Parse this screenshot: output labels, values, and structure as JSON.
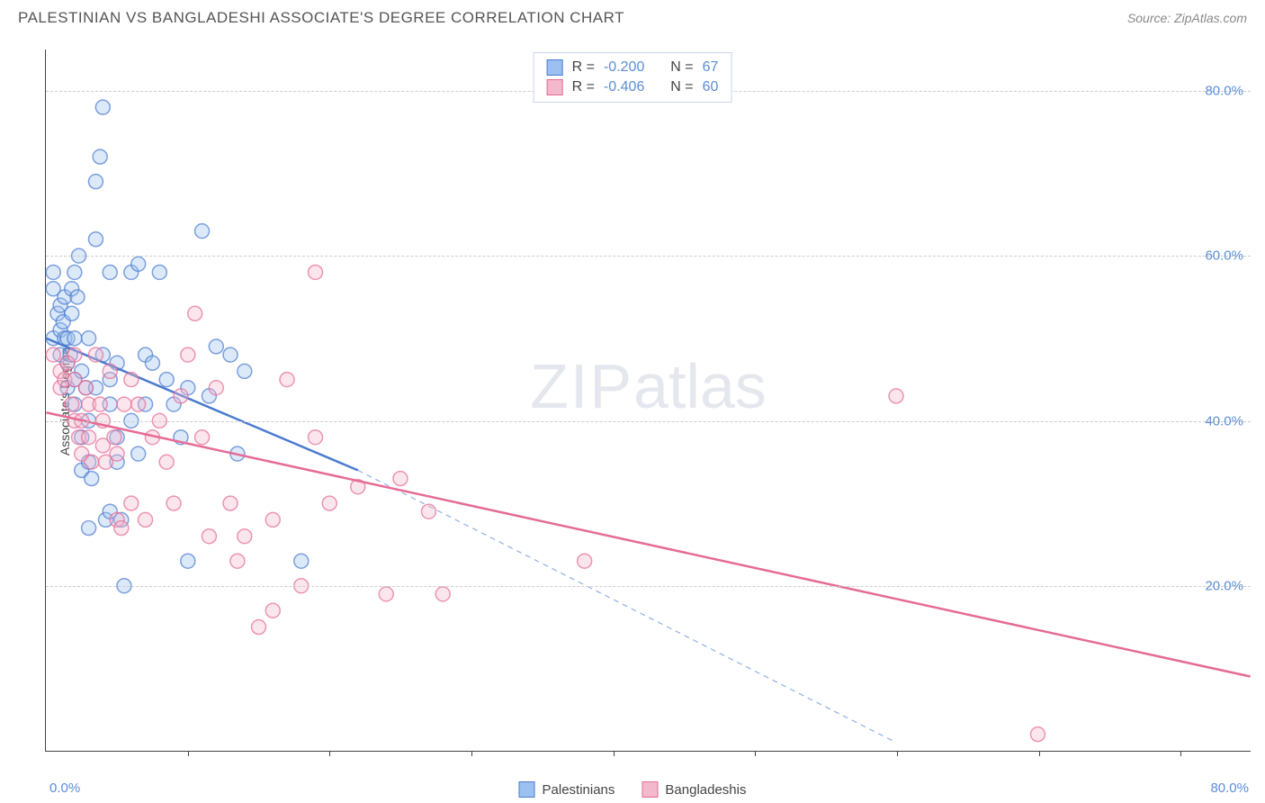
{
  "header": {
    "title": "PALESTINIAN VS BANGLADESHI ASSOCIATE'S DEGREE CORRELATION CHART",
    "source_prefix": "Source: ",
    "source_name": "ZipAtlas.com"
  },
  "watermark": {
    "zip": "ZIP",
    "atlas": "atlas"
  },
  "chart": {
    "type": "scatter",
    "xlim": [
      0,
      85
    ],
    "ylim": [
      0,
      85
    ],
    "y_axis_title": "Associate's Degree",
    "x_label_min": "0.0%",
    "x_label_max": "80.0%",
    "y_ticks": [
      {
        "value": 20,
        "label": "20.0%"
      },
      {
        "value": 40,
        "label": "40.0%"
      },
      {
        "value": 60,
        "label": "60.0%"
      },
      {
        "value": 80,
        "label": "80.0%"
      }
    ],
    "x_tick_values": [
      10,
      20,
      30,
      40,
      50,
      60,
      70,
      80
    ],
    "grid_color": "#cccccc",
    "background_color": "#ffffff",
    "marker_radius": 8,
    "marker_fill_opacity": 0.35,
    "marker_stroke_width": 1.5,
    "line_width": 2.5,
    "series": [
      {
        "name": "Palestinians",
        "color_stroke": "#4a7bd0",
        "color_fill": "#9cc0ef",
        "R": "-0.200",
        "N": "67",
        "trend_line": {
          "x1": 0,
          "y1": 50,
          "x2": 22,
          "y2": 34,
          "dash_ext_x": 60,
          "dash_ext_y": 1
        },
        "points": [
          [
            0.5,
            50
          ],
          [
            0.8,
            53
          ],
          [
            0.5,
            56
          ],
          [
            0.5,
            58
          ],
          [
            1,
            48
          ],
          [
            1,
            51
          ],
          [
            1,
            54
          ],
          [
            1.2,
            52
          ],
          [
            1.3,
            50
          ],
          [
            1.3,
            55
          ],
          [
            1.5,
            47
          ],
          [
            1.5,
            44
          ],
          [
            1.5,
            50
          ],
          [
            1.7,
            48
          ],
          [
            1.8,
            53
          ],
          [
            1.8,
            56
          ],
          [
            2,
            42
          ],
          [
            2,
            45
          ],
          [
            2,
            50
          ],
          [
            2,
            58
          ],
          [
            2.2,
            55
          ],
          [
            2.3,
            60
          ],
          [
            2.5,
            38
          ],
          [
            2.5,
            34
          ],
          [
            2.5,
            46
          ],
          [
            2.8,
            44
          ],
          [
            3,
            50
          ],
          [
            3,
            40
          ],
          [
            3,
            35
          ],
          [
            3.2,
            33
          ],
          [
            3.5,
            62
          ],
          [
            3.5,
            69
          ],
          [
            3.5,
            44
          ],
          [
            3.8,
            72
          ],
          [
            4,
            78
          ],
          [
            4,
            48
          ],
          [
            4.2,
            28
          ],
          [
            4.5,
            58
          ],
          [
            4.5,
            45
          ],
          [
            4.5,
            42
          ],
          [
            5,
            38
          ],
          [
            5,
            47
          ],
          [
            5,
            35
          ],
          [
            5.3,
            28
          ],
          [
            5.5,
            20
          ],
          [
            6,
            40
          ],
          [
            6,
            58
          ],
          [
            6.5,
            59
          ],
          [
            6.5,
            36
          ],
          [
            7,
            48
          ],
          [
            7,
            42
          ],
          [
            7.5,
            47
          ],
          [
            8,
            58
          ],
          [
            8.5,
            45
          ],
          [
            9,
            42
          ],
          [
            9.5,
            38
          ],
          [
            10,
            44
          ],
          [
            10,
            23
          ],
          [
            11,
            63
          ],
          [
            11.5,
            43
          ],
          [
            12,
            49
          ],
          [
            13,
            48
          ],
          [
            13.5,
            36
          ],
          [
            14,
            46
          ],
          [
            18,
            23
          ],
          [
            3,
            27
          ],
          [
            4.5,
            29
          ]
        ]
      },
      {
        "name": "Bangladeshis",
        "color_stroke": "#e56b95",
        "color_fill": "#f3b8cc",
        "R": "-0.406",
        "N": "60",
        "trend_line": {
          "x1": 0,
          "y1": 41,
          "x2": 85,
          "y2": 9
        },
        "points": [
          [
            0.5,
            48
          ],
          [
            1,
            46
          ],
          [
            1,
            44
          ],
          [
            1.3,
            45
          ],
          [
            1.5,
            47
          ],
          [
            1.8,
            42
          ],
          [
            2,
            40
          ],
          [
            2,
            45
          ],
          [
            2,
            48
          ],
          [
            2.3,
            38
          ],
          [
            2.5,
            36
          ],
          [
            2.5,
            40
          ],
          [
            2.8,
            44
          ],
          [
            3,
            42
          ],
          [
            3,
            38
          ],
          [
            3.2,
            35
          ],
          [
            3.5,
            48
          ],
          [
            3.8,
            42
          ],
          [
            4,
            40
          ],
          [
            4,
            37
          ],
          [
            4.2,
            35
          ],
          [
            4.5,
            46
          ],
          [
            4.8,
            38
          ],
          [
            5,
            28
          ],
          [
            5,
            36
          ],
          [
            5.3,
            27
          ],
          [
            5.5,
            42
          ],
          [
            6,
            45
          ],
          [
            6,
            30
          ],
          [
            6.5,
            42
          ],
          [
            7,
            28
          ],
          [
            7.5,
            38
          ],
          [
            8,
            40
          ],
          [
            8.5,
            35
          ],
          [
            9,
            30
          ],
          [
            9.5,
            43
          ],
          [
            10,
            48
          ],
          [
            10.5,
            53
          ],
          [
            11,
            38
          ],
          [
            11.5,
            26
          ],
          [
            12,
            44
          ],
          [
            13,
            30
          ],
          [
            13.5,
            23
          ],
          [
            14,
            26
          ],
          [
            15,
            15
          ],
          [
            16,
            17
          ],
          [
            17,
            45
          ],
          [
            18,
            20
          ],
          [
            19,
            58
          ],
          [
            20,
            30
          ],
          [
            22,
            32
          ],
          [
            24,
            19
          ],
          [
            25,
            33
          ],
          [
            27,
            29
          ],
          [
            28,
            19
          ],
          [
            38,
            23
          ],
          [
            60,
            43
          ],
          [
            70,
            2
          ],
          [
            16,
            28
          ],
          [
            19,
            38
          ]
        ]
      }
    ],
    "stat_legend": {
      "R_label": "R =",
      "N_label": "N ="
    }
  }
}
